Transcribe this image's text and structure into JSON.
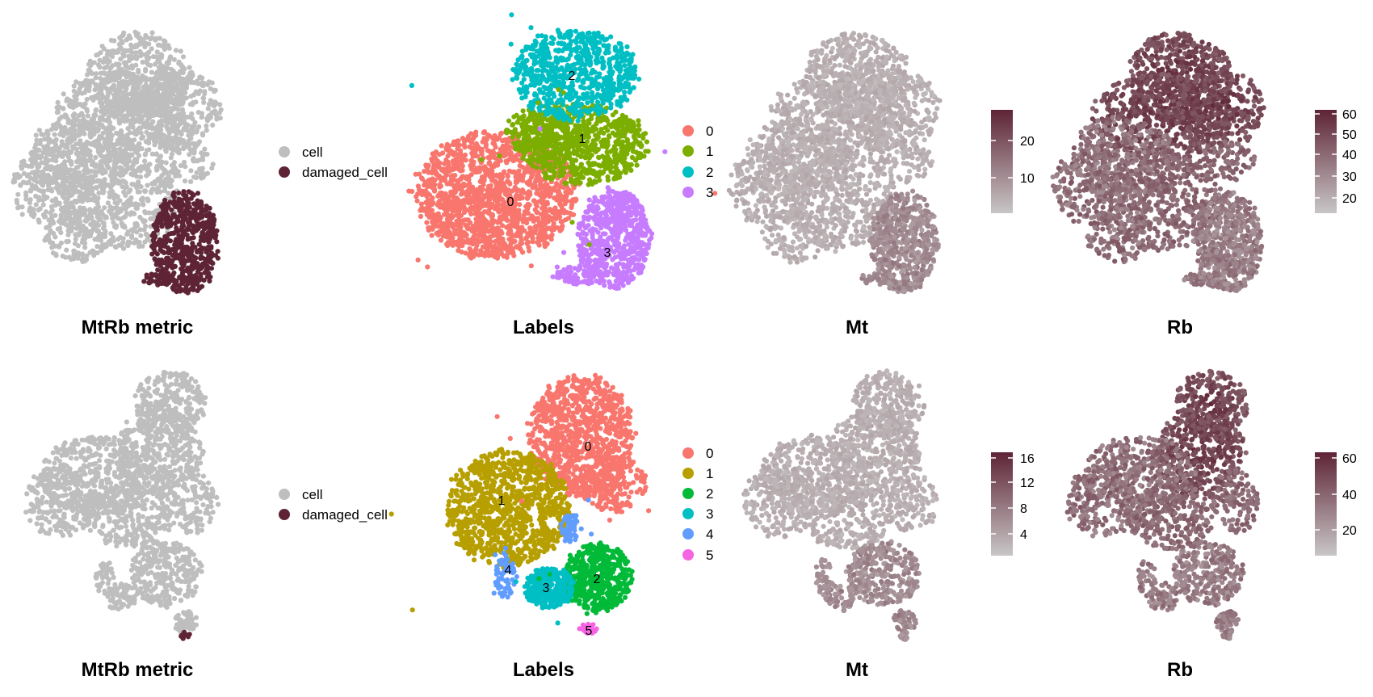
{
  "colors": {
    "cell": "#bebebe",
    "damaged_cell": "#5e2436",
    "gradient_low": "#c8c6c6",
    "gradient_high": "#5e2436",
    "cluster_top": [
      "#f8766d",
      "#7cae00",
      "#00bfc4",
      "#c77cff"
    ],
    "cluster_bottom": [
      "#f8766d",
      "#b79f00",
      "#00ba38",
      "#00bfc4",
      "#619cff",
      "#f564e3"
    ]
  },
  "rows": [
    {
      "panels": [
        {
          "kind": "categorical",
          "title": "MtRb metric",
          "legend": [
            "cell",
            "damaged_cell"
          ]
        },
        {
          "kind": "clusters",
          "title": "Labels",
          "legend": [
            "0",
            "1",
            "2",
            "3"
          ],
          "cluster_labels": [
            "0",
            "1",
            "2",
            "3"
          ]
        },
        {
          "kind": "continuous",
          "title": "Mt",
          "ticks": [
            "10",
            "20"
          ]
        },
        {
          "kind": "continuous",
          "title": "Rb",
          "ticks": [
            "20",
            "30",
            "40",
            "50",
            "60"
          ]
        }
      ]
    },
    {
      "panels": [
        {
          "kind": "categorical",
          "title": "MtRb metric",
          "legend": [
            "cell",
            "damaged_cell"
          ]
        },
        {
          "kind": "clusters",
          "title": "Labels",
          "legend": [
            "0",
            "1",
            "2",
            "3",
            "4",
            "5"
          ],
          "cluster_labels": [
            "0",
            "1",
            "2",
            "3",
            "4",
            "5"
          ]
        },
        {
          "kind": "continuous",
          "title": "Mt",
          "ticks": [
            "4",
            "8",
            "12",
            "16"
          ]
        },
        {
          "kind": "continuous",
          "title": "Rb",
          "ticks": [
            "20",
            "40",
            "60"
          ]
        }
      ]
    }
  ],
  "chart_data": [
    {
      "type": "scatter",
      "title": "MtRb metric",
      "categories": [
        "cell",
        "damaged_cell"
      ],
      "colored_by": "MtRb metric"
    },
    {
      "type": "scatter",
      "title": "Labels",
      "categories": [
        "0",
        "1",
        "2",
        "3"
      ],
      "colored_by": "cluster"
    },
    {
      "type": "scatter",
      "title": "Mt",
      "colorbar": {
        "min": 3,
        "max": 27,
        "ticks": [
          10,
          20
        ]
      }
    },
    {
      "type": "scatter",
      "title": "Rb",
      "colorbar": {
        "min": 15,
        "max": 62,
        "ticks": [
          20,
          30,
          40,
          50,
          60
        ]
      }
    },
    {
      "type": "scatter",
      "title": "MtRb metric",
      "categories": [
        "cell",
        "damaged_cell"
      ],
      "colored_by": "MtRb metric"
    },
    {
      "type": "scatter",
      "title": "Labels",
      "categories": [
        "0",
        "1",
        "2",
        "3",
        "4",
        "5"
      ],
      "colored_by": "cluster"
    },
    {
      "type": "scatter",
      "title": "Mt",
      "colorbar": {
        "min": 2,
        "max": 17,
        "ticks": [
          4,
          8,
          12,
          16
        ]
      }
    },
    {
      "type": "scatter",
      "title": "Rb",
      "colorbar": {
        "min": 8,
        "max": 63,
        "ticks": [
          20,
          40,
          60
        ]
      }
    }
  ]
}
